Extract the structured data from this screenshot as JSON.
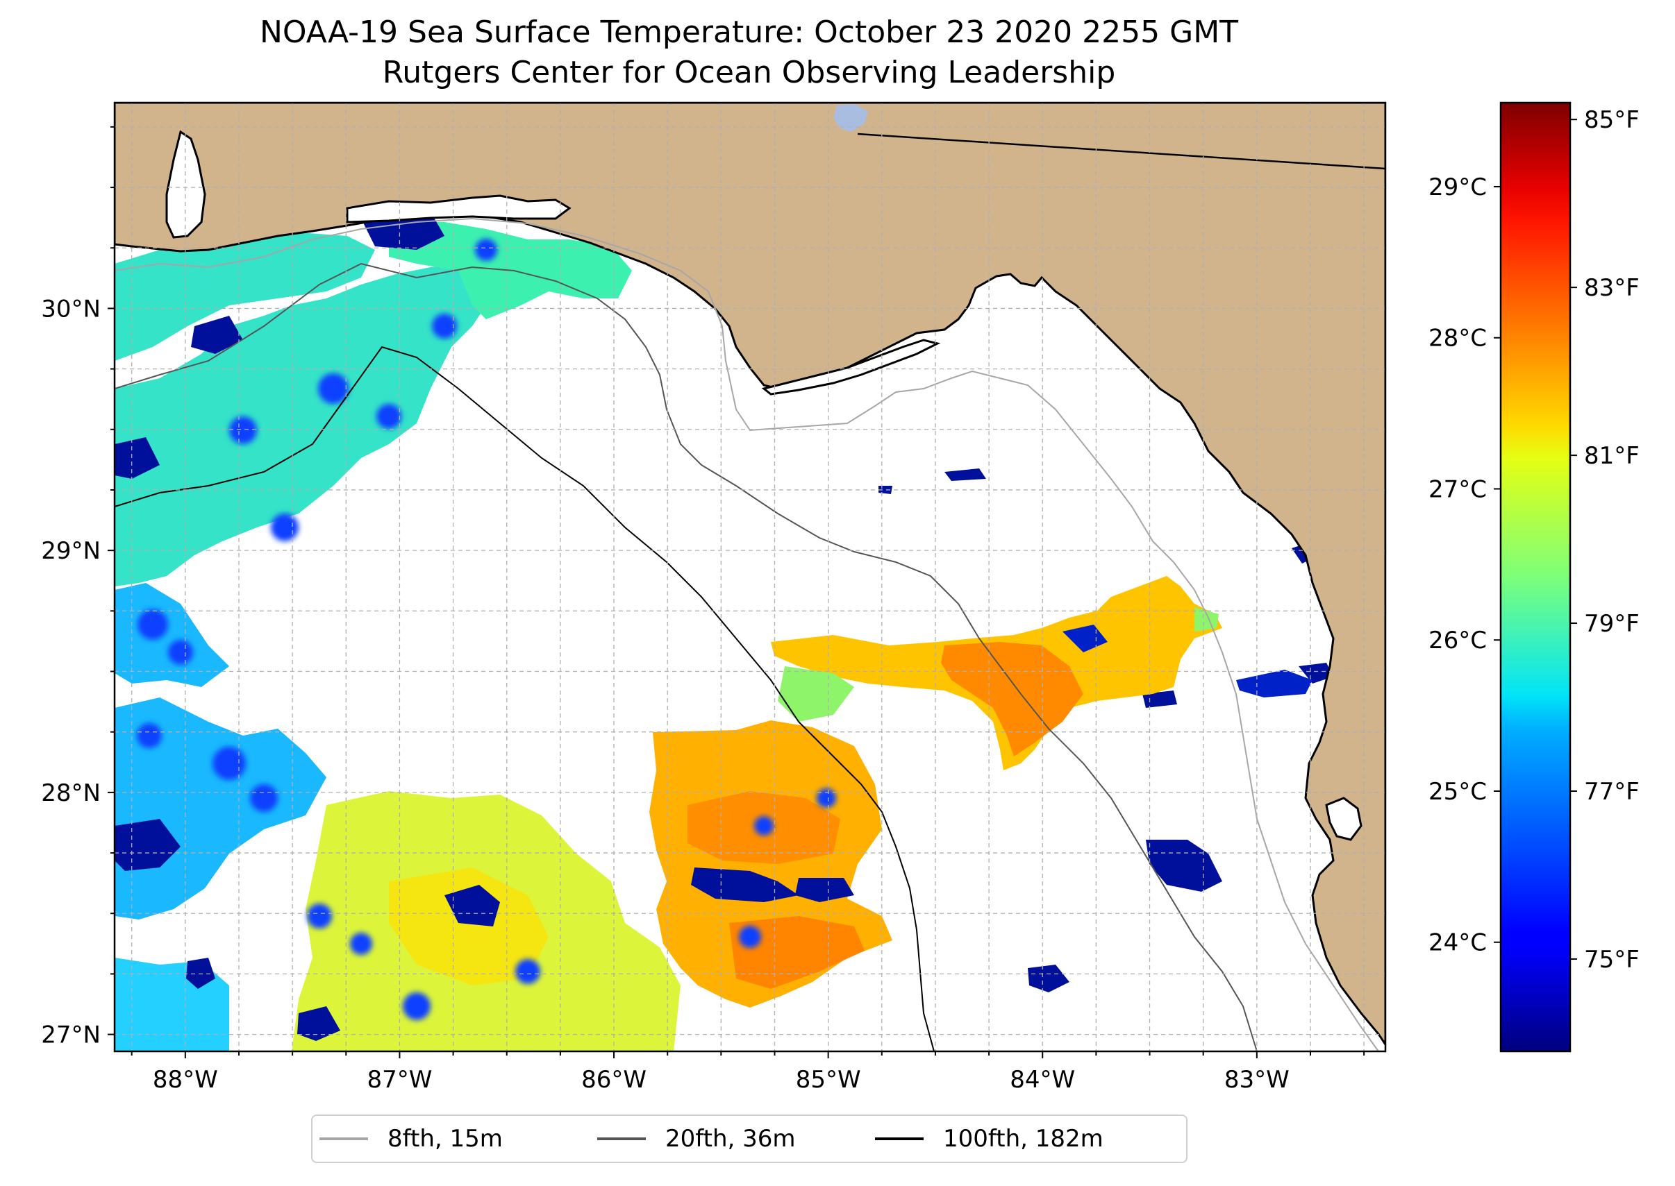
{
  "title": {
    "line1": "NOAA-19 Sea Surface Temperature: October 23 2020 2255 GMT",
    "line2": "Rutgers Center for Ocean Observing Leadership"
  },
  "map": {
    "lon_range": [
      -88.33,
      -82.4
    ],
    "lat_range": [
      26.93,
      30.85
    ],
    "gridlines": "dashed grey every 0.25 degrees",
    "land_color": "#d2b48c",
    "water_color": "#ffffff",
    "lake_color": "#a8bde0",
    "lon_ticks": [
      {
        "value": -88,
        "label": "88°W"
      },
      {
        "value": -87,
        "label": "87°W"
      },
      {
        "value": -86,
        "label": "86°W"
      },
      {
        "value": -85,
        "label": "85°W"
      },
      {
        "value": -84,
        "label": "84°W"
      },
      {
        "value": -83,
        "label": "83°W"
      }
    ],
    "lat_ticks": [
      {
        "value": 27,
        "label": "27°N"
      },
      {
        "value": 28,
        "label": "28°N"
      },
      {
        "value": 29,
        "label": "29°N"
      },
      {
        "value": 30,
        "label": "30°N"
      }
    ]
  },
  "colorbar": {
    "colormap": "jet",
    "range_f": [
      73.9,
      85.2
    ],
    "celsius_ticks": [
      {
        "value": 24,
        "label": "24°C"
      },
      {
        "value": 25,
        "label": "25°C"
      },
      {
        "value": 26,
        "label": "26°C"
      },
      {
        "value": 27,
        "label": "27°C"
      },
      {
        "value": 28,
        "label": "28°C"
      },
      {
        "value": 29,
        "label": "29°C"
      }
    ],
    "fahrenheit_ticks": [
      {
        "value": 75,
        "label": "75°F"
      },
      {
        "value": 77,
        "label": "77°F"
      },
      {
        "value": 79,
        "label": "79°F"
      },
      {
        "value": 81,
        "label": "81°F"
      },
      {
        "value": 83,
        "label": "83°F"
      },
      {
        "value": 85,
        "label": "85°F"
      }
    ]
  },
  "legend": {
    "placement": "bottom-center",
    "items": [
      {
        "label": "8fth, 15m",
        "color": "#a6a6a6"
      },
      {
        "label": "20fth, 36m",
        "color": "#555555"
      },
      {
        "label": "100fth, 182m",
        "color": "#000000"
      }
    ]
  }
}
